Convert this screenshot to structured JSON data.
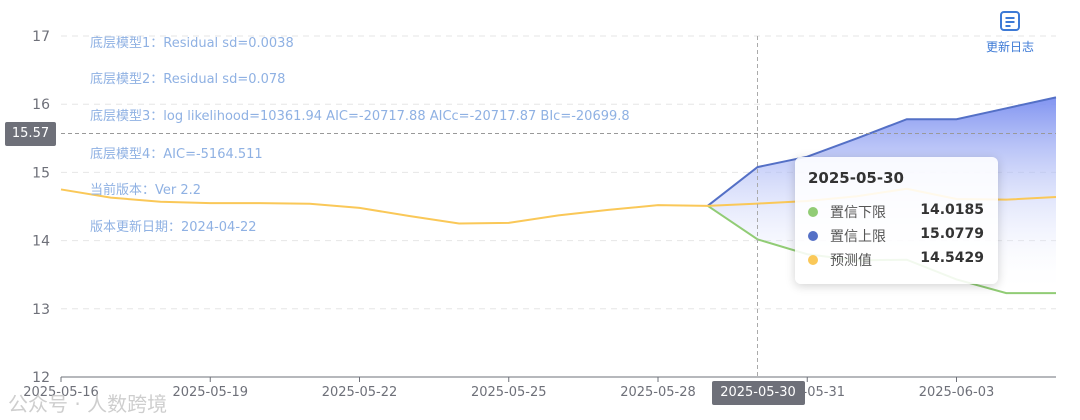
{
  "chart_data": {
    "type": "line",
    "x": [
      "2025-05-16",
      "2025-05-17",
      "2025-05-18",
      "2025-05-19",
      "2025-05-20",
      "2025-05-21",
      "2025-05-22",
      "2025-05-23",
      "2025-05-24",
      "2025-05-25",
      "2025-05-26",
      "2025-05-27",
      "2025-05-28",
      "2025-05-29",
      "2025-05-30",
      "2025-05-31",
      "2025-06-01",
      "2025-06-02",
      "2025-06-03",
      "2025-06-04",
      "2025-06-05"
    ],
    "x_tick_labels": [
      "2025-05-16",
      "2025-05-19",
      "2025-05-22",
      "2025-05-25",
      "2025-05-28",
      "2025-05-31",
      "2025-06-03"
    ],
    "ylim": [
      12,
      17
    ],
    "y_ticks": [
      12,
      13,
      14,
      15,
      16,
      17
    ],
    "grid": true,
    "series": [
      {
        "name": "预测值",
        "color": "#fac858",
        "values": [
          14.75,
          14.63,
          14.57,
          14.55,
          14.55,
          14.54,
          14.48,
          14.36,
          14.25,
          14.26,
          14.37,
          14.45,
          14.52,
          14.51,
          14.5429,
          14.58,
          14.65,
          14.76,
          14.61,
          14.6,
          14.64
        ]
      },
      {
        "name": "置信下限",
        "color": "#91cc75",
        "values": [
          null,
          null,
          null,
          null,
          null,
          null,
          null,
          null,
          null,
          null,
          null,
          null,
          null,
          14.51,
          14.0185,
          13.8,
          13.71,
          13.72,
          13.43,
          13.23,
          13.23
        ]
      },
      {
        "name": "置信上限",
        "color": "#5470c6",
        "values": [
          null,
          null,
          null,
          null,
          null,
          null,
          null,
          null,
          null,
          null,
          null,
          null,
          null,
          14.51,
          15.0779,
          15.23,
          15.5,
          15.78,
          15.78,
          15.94,
          16.1
        ]
      }
    ],
    "annotations": [
      "底层模型1：Residual sd=0.0038",
      "底层模型2：Residual sd=0.078",
      "底层模型3：log likelihood=10361.94 AIC=-20717.88 AICc=-20717.87 BIc=-20699.8",
      "底层模型4：AIC=-5164.511",
      "当前版本：Ver 2.2",
      "版本更新日期：2024-04-22"
    ]
  },
  "tooltip": {
    "title": "2025-05-30",
    "rows": [
      {
        "name": "置信下限",
        "value": "14.0185",
        "color": "#91cc75"
      },
      {
        "name": "置信上限",
        "value": "15.0779",
        "color": "#5470c6"
      },
      {
        "name": "预测值",
        "value": "14.5429",
        "color": "#fac858"
      }
    ]
  },
  "axis_pointer": {
    "x_label": "2025-05-30",
    "y_label": "15.57",
    "x_value": "2025-05-30",
    "y_value": 15.57
  },
  "changelog_button": {
    "label": "更新日志",
    "icon": "changelog-icon"
  },
  "watermark": "公众号 · 人数跨境"
}
